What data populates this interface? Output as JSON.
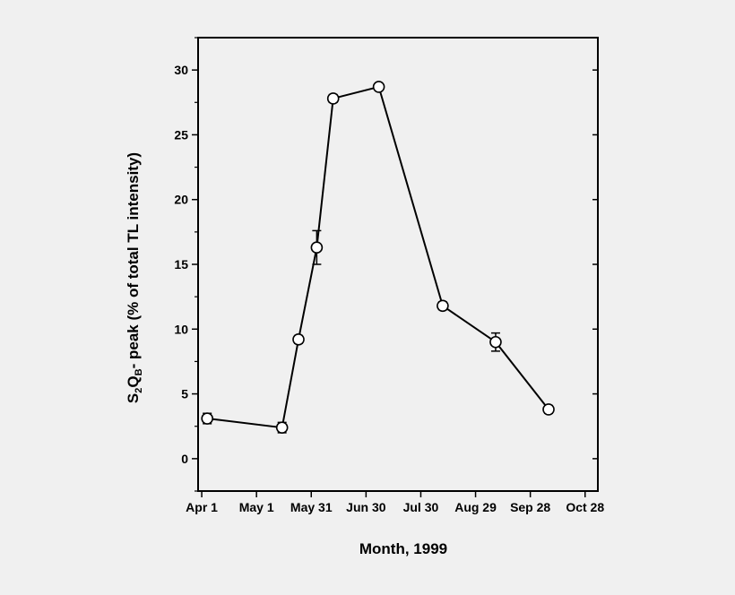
{
  "chart_data": {
    "type": "line",
    "title": "",
    "xlabel": "Month, 1999",
    "ylabel": {
      "parts": [
        "S",
        "2",
        "Q",
        "B",
        "- peak (% of total TL intensity)"
      ]
    },
    "x_ticks": [
      {
        "label": "Apr 1",
        "date": "1999-04-01"
      },
      {
        "label": "May 1",
        "date": "1999-05-01"
      },
      {
        "label": "May 31",
        "date": "1999-05-31"
      },
      {
        "label": "Jun 30",
        "date": "1999-06-30"
      },
      {
        "label": "Jul 30",
        "date": "1999-07-30"
      },
      {
        "label": "Aug 29",
        "date": "1999-08-29"
      },
      {
        "label": "Sep 28",
        "date": "1999-09-28"
      },
      {
        "label": "Oct 28",
        "date": "1999-10-28"
      }
    ],
    "y_ticks": [
      0,
      5,
      10,
      15,
      20,
      25,
      30
    ],
    "xlim": [
      "1999-03-30",
      "1999-11-04"
    ],
    "ylim": [
      -2.5,
      32.5
    ],
    "grid": false,
    "legend": "none",
    "points": [
      {
        "date": "1999-04-04",
        "y": 3.1,
        "err": 0.4
      },
      {
        "date": "1999-05-15",
        "y": 2.4,
        "err": 0.4
      },
      {
        "date": "1999-05-24",
        "y": 9.2,
        "err": 0.3
      },
      {
        "date": "1999-06-03",
        "y": 16.3,
        "err": 1.3
      },
      {
        "date": "1999-06-12",
        "y": 27.8,
        "err": 0.3
      },
      {
        "date": "1999-07-07",
        "y": 28.7,
        "err": 0.2
      },
      {
        "date": "1999-08-11",
        "y": 11.8,
        "err": 0.3
      },
      {
        "date": "1999-09-09",
        "y": 9.0,
        "err": 0.7
      },
      {
        "date": "1999-10-08",
        "y": 3.8,
        "err": 0.3
      }
    ],
    "colors": {
      "line": "#000000",
      "marker_fill": "#ffffff",
      "axis": "#000000"
    }
  }
}
